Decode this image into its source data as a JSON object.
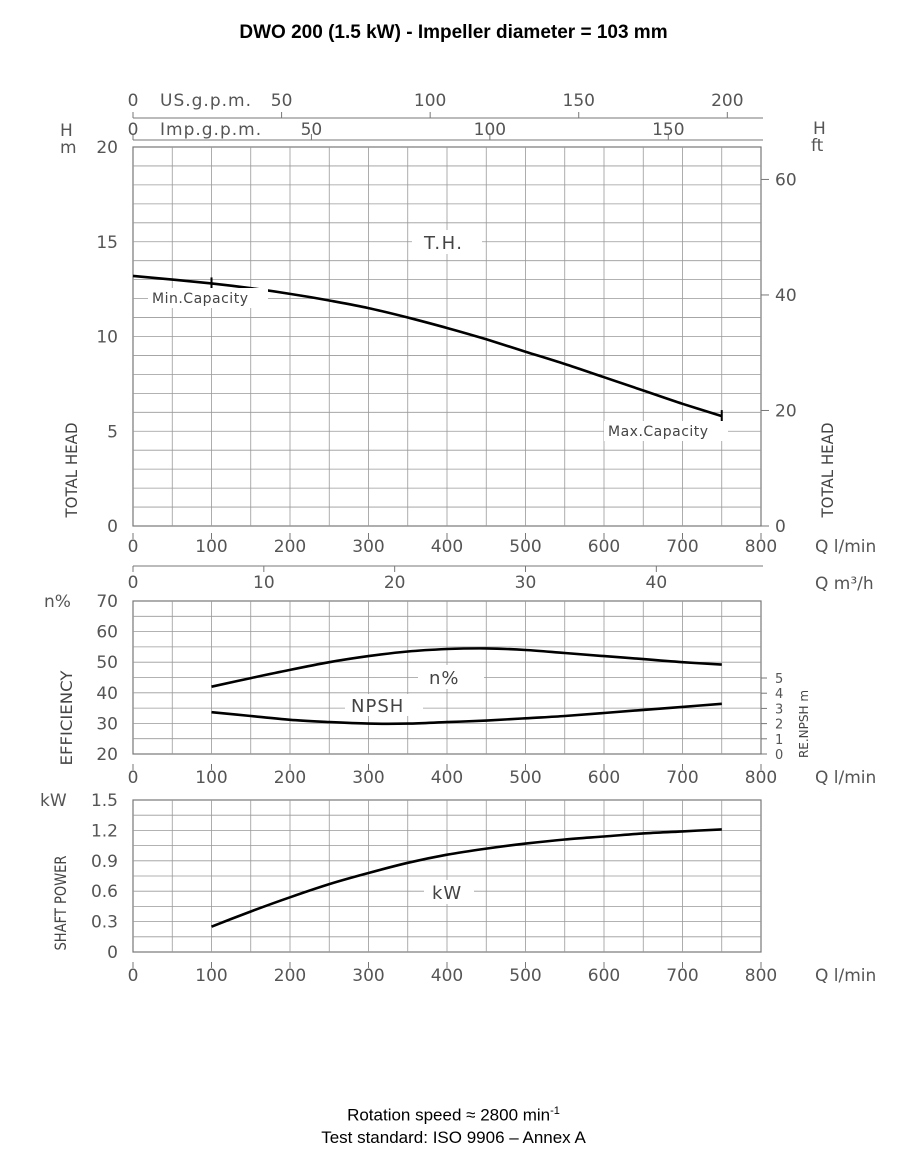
{
  "title": "DWO 200 (1.5 kW) - Impeller diameter = 103 mm",
  "footer": {
    "rotation_text": "Rotation speed ≈ 2800 min",
    "rotation_sup": "-1",
    "standard": "Test standard: ISO 9906 – Annex A"
  },
  "chart_data": [
    {
      "type": "line",
      "name": "head",
      "x": [
        0,
        100,
        150,
        200,
        250,
        300,
        350,
        400,
        450,
        500,
        550,
        600,
        650,
        700,
        750
      ],
      "series": [
        {
          "name": "T.H.",
          "values": [
            13.2,
            12.8,
            12.55,
            12.25,
            11.9,
            11.5,
            11.0,
            10.45,
            9.85,
            9.2,
            8.55,
            7.85,
            7.15,
            6.45,
            5.8
          ]
        }
      ],
      "xlim": [
        0,
        800
      ],
      "ylim": [
        0,
        20
      ],
      "x_ticks": [
        0,
        100,
        200,
        300,
        400,
        500,
        600,
        700,
        800
      ],
      "y_ticks": [
        0,
        5,
        10,
        15,
        20
      ],
      "right_ticks": [
        0,
        20,
        40,
        60
      ],
      "left_units": [
        "H",
        "m"
      ],
      "right_units": [
        "H",
        "ft"
      ],
      "ylabel": "TOTAL HEAD",
      "ylabel_right": "TOTAL HEAD",
      "xunit": "Q l/min",
      "usgpm_label": "US.g.p.m.",
      "usgpm_ticks": [
        0,
        50,
        100,
        150,
        200
      ],
      "impgpm_label": "Imp.g.p.m.",
      "impgpm_ticks": [
        0,
        50,
        100,
        150
      ],
      "m3h_ticks": [
        0,
        10,
        20,
        30,
        40
      ],
      "m3h_unit": "Q m³/h",
      "annotations": {
        "min": "Min.Capacity",
        "max": "Max.Capacity",
        "curve": "T.H."
      },
      "min_capacity_x": 100,
      "max_capacity_x": 750,
      "grid": true
    },
    {
      "type": "line",
      "name": "efficiency",
      "x": [
        100,
        150,
        200,
        250,
        300,
        350,
        400,
        450,
        500,
        550,
        600,
        650,
        700,
        750
      ],
      "series": [
        {
          "name": "n%",
          "values": [
            42.0,
            44.8,
            47.5,
            50.0,
            52.0,
            53.5,
            54.3,
            54.5,
            54.0,
            53.0,
            52.0,
            51.0,
            50.0,
            49.2
          ]
        },
        {
          "name": "NPSH",
          "values": [
            2.75,
            2.5,
            2.25,
            2.1,
            2.0,
            2.0,
            2.1,
            2.2,
            2.35,
            2.5,
            2.7,
            2.9,
            3.1,
            3.3
          ]
        }
      ],
      "xlim": [
        0,
        800
      ],
      "ylim": [
        20,
        70
      ],
      "npsh_lim": [
        0,
        5
      ],
      "x_ticks": [
        0,
        100,
        200,
        300,
        400,
        500,
        600,
        700,
        800
      ],
      "y_ticks": [
        20,
        30,
        40,
        50,
        60,
        70
      ],
      "right_ticks": [
        0,
        1,
        2,
        3,
        4,
        5
      ],
      "unit": "n%",
      "ylabel": "EFFICIENCY",
      "ylabel_right": "RE.NPSH m",
      "xunit": "Q l/min",
      "grid": true
    },
    {
      "type": "line",
      "name": "power",
      "x": [
        100,
        150,
        200,
        250,
        300,
        350,
        400,
        450,
        500,
        550,
        600,
        650,
        700,
        750
      ],
      "series": [
        {
          "name": "kW",
          "values": [
            0.25,
            0.4,
            0.54,
            0.67,
            0.78,
            0.88,
            0.96,
            1.02,
            1.07,
            1.11,
            1.14,
            1.17,
            1.19,
            1.21
          ]
        }
      ],
      "xlim": [
        0,
        800
      ],
      "ylim": [
        0,
        1.5
      ],
      "x_ticks": [
        0,
        100,
        200,
        300,
        400,
        500,
        600,
        700,
        800
      ],
      "y_ticks": [
        0,
        0.3,
        0.6,
        0.9,
        1.2,
        1.5
      ],
      "y_tick_labels": [
        "0",
        "0.3",
        "0.6",
        "0.9",
        "1.2",
        "1.5"
      ],
      "unit": "kW",
      "ylabel": "SHAFT POWER",
      "xunit": "Q l/min",
      "grid": true
    }
  ]
}
